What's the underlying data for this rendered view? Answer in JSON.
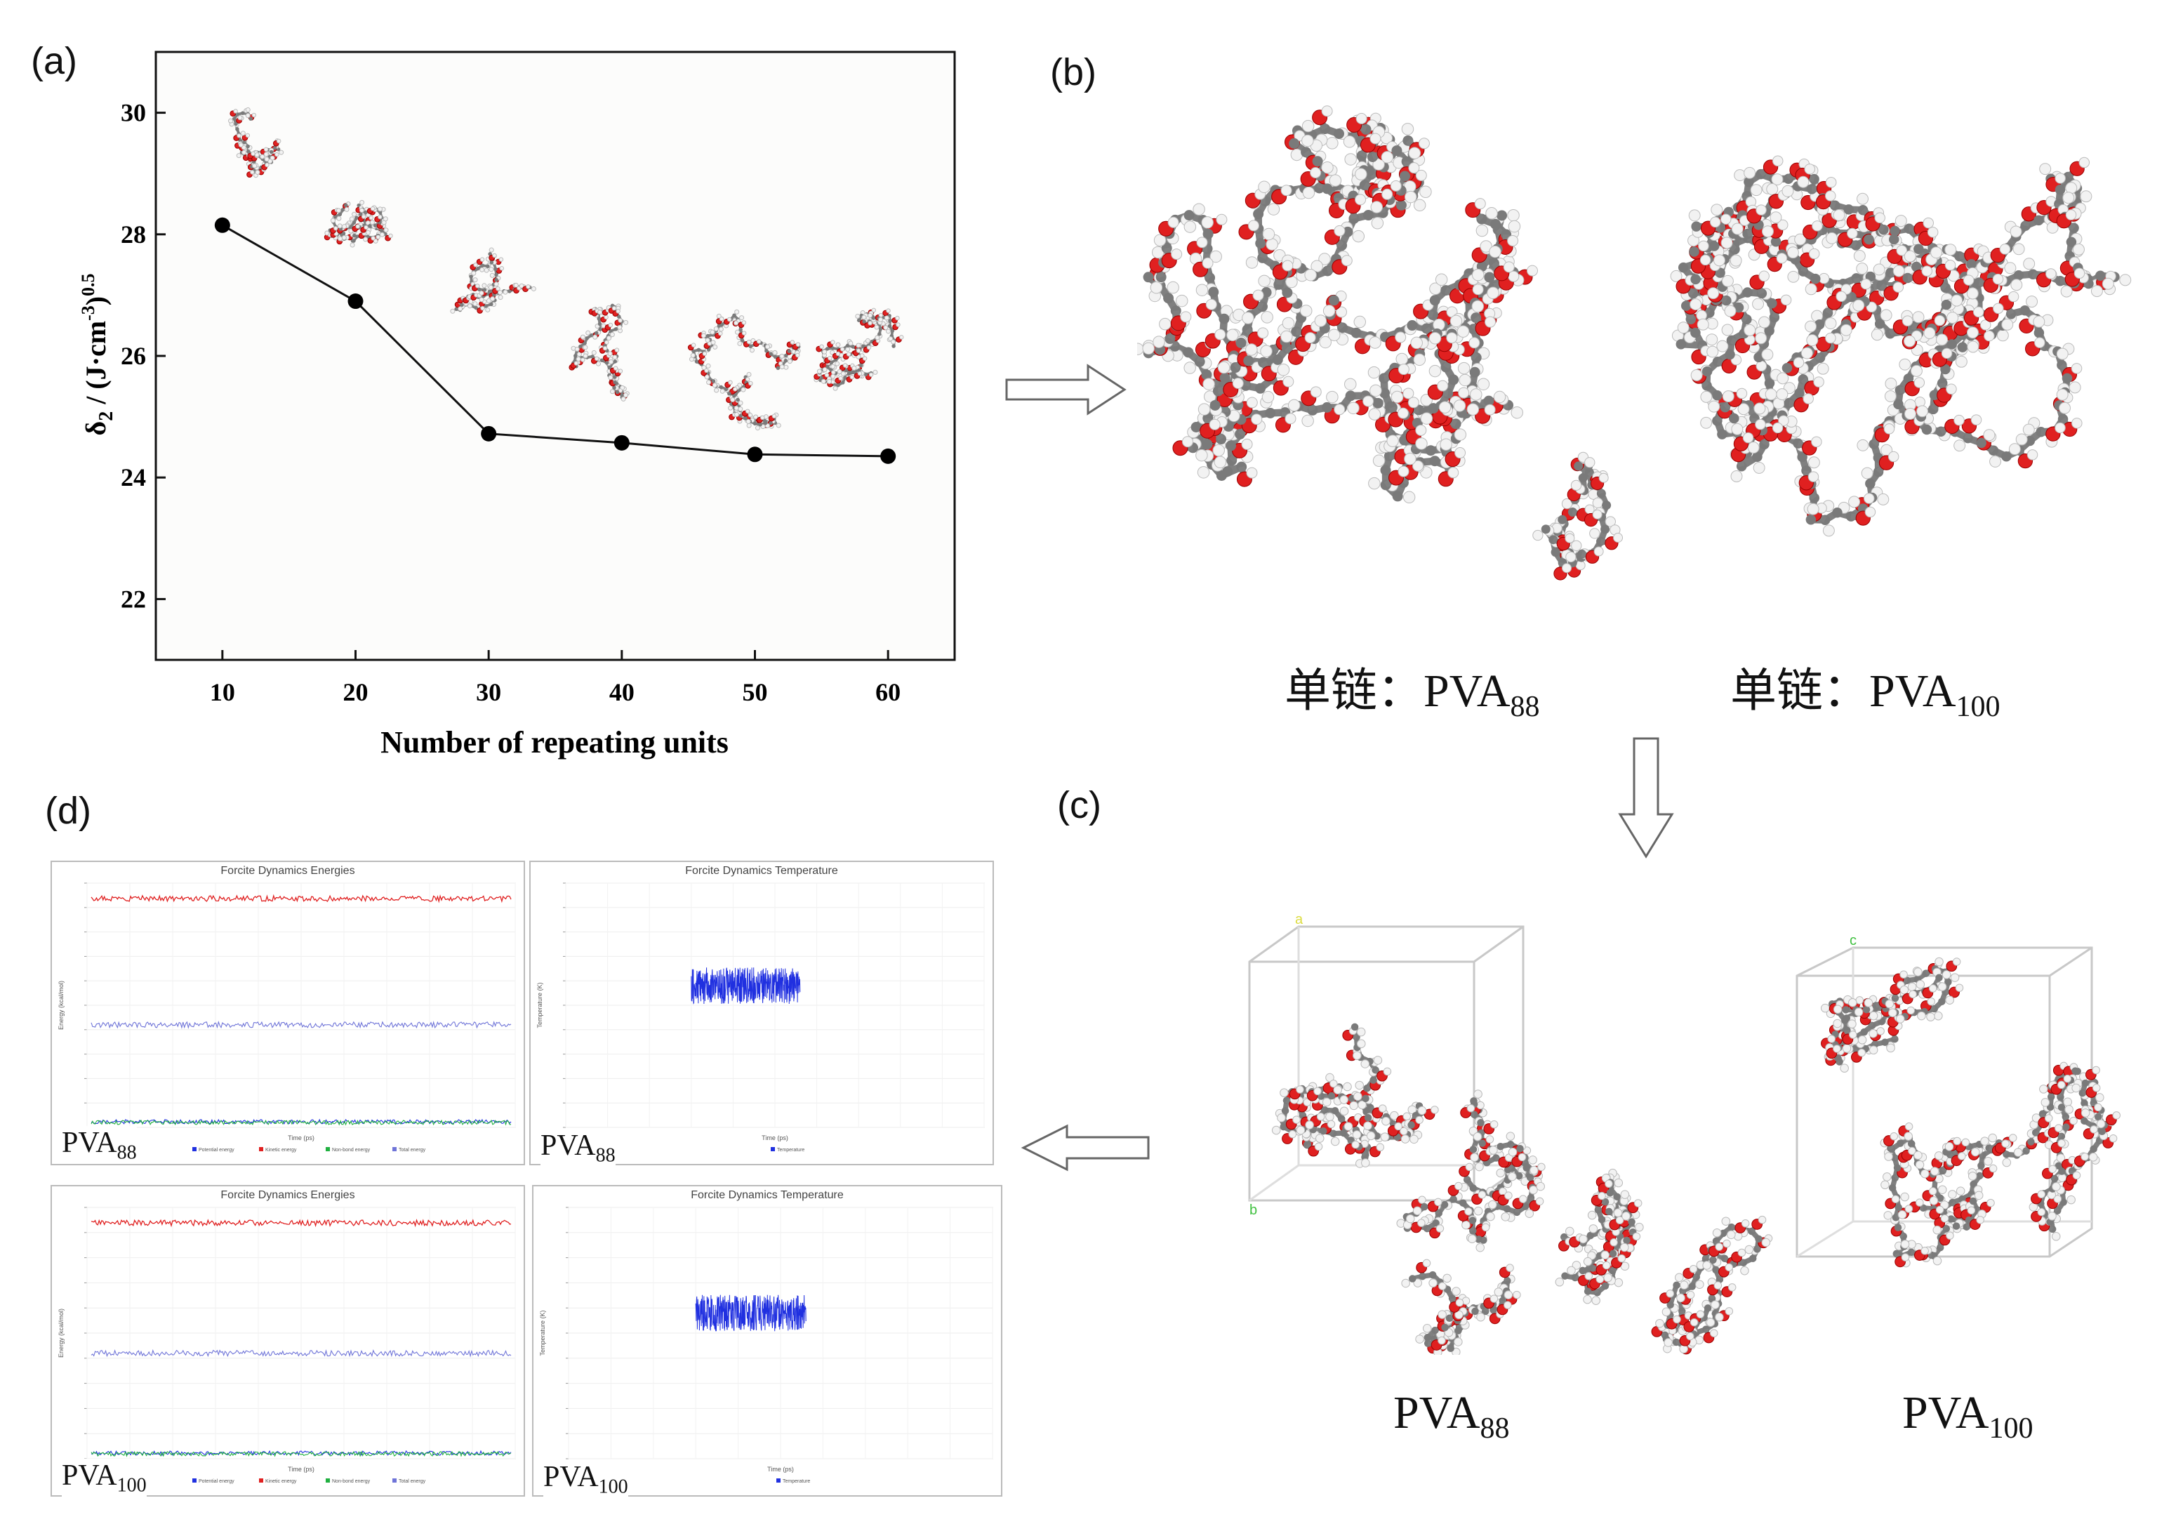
{
  "panels": {
    "a": "(a)",
    "b": "(b)",
    "c": "(c)",
    "d": "(d)"
  },
  "chart_data": {
    "type": "line",
    "title": "",
    "xlabel": "Number of repeating units",
    "ylabel_main": "δ",
    "ylabel_sub": "2",
    "ylabel_rest": " / (J·cm",
    "ylabel_exp": "-3",
    "ylabel_end": ")",
    "ylabel_pow": "0.5",
    "x": [
      10,
      20,
      30,
      40,
      50,
      60
    ],
    "y": [
      28.15,
      26.9,
      24.72,
      24.57,
      24.38,
      24.35
    ],
    "xticks": [
      10,
      20,
      30,
      40,
      50,
      60
    ],
    "yticks": [
      22,
      24,
      26,
      28,
      30
    ],
    "xlim": [
      5,
      65
    ],
    "ylim": [
      21,
      31
    ]
  },
  "b": {
    "label1_main": "单链：PVA",
    "label1_sub": "88",
    "label2_main": "单链：PVA",
    "label2_sub": "100"
  },
  "c": {
    "label1_main": "PVA",
    "label1_sub": "88",
    "label2_main": "PVA",
    "label2_sub": "100"
  },
  "d": {
    "energy_title": "Forcite Dynamics Energies",
    "temp_title": "Forcite Dynamics Temperature",
    "energy_ylabel": "Energy (kcal/mol)",
    "temp_ylabel": "Temperature (K)",
    "xlabel": "Time (ps)",
    "energy_legend": [
      "Potential energy",
      "Kinetic energy",
      "Non-bond energy",
      "Total energy"
    ],
    "temp_legend": "Temperature",
    "tl": {
      "main": "PVA",
      "sub": "88"
    },
    "tr": {
      "main": "PVA",
      "sub": "88"
    },
    "bl": {
      "main": "PVA",
      "sub": "100"
    },
    "br": {
      "main": "PVA",
      "sub": "100"
    }
  },
  "colors": {
    "red": "#e02020",
    "blue": "#2030e0",
    "lavender": "#6f74d8",
    "green": "#20b040",
    "gray": "#808080",
    "white": "#f2f2f2"
  }
}
